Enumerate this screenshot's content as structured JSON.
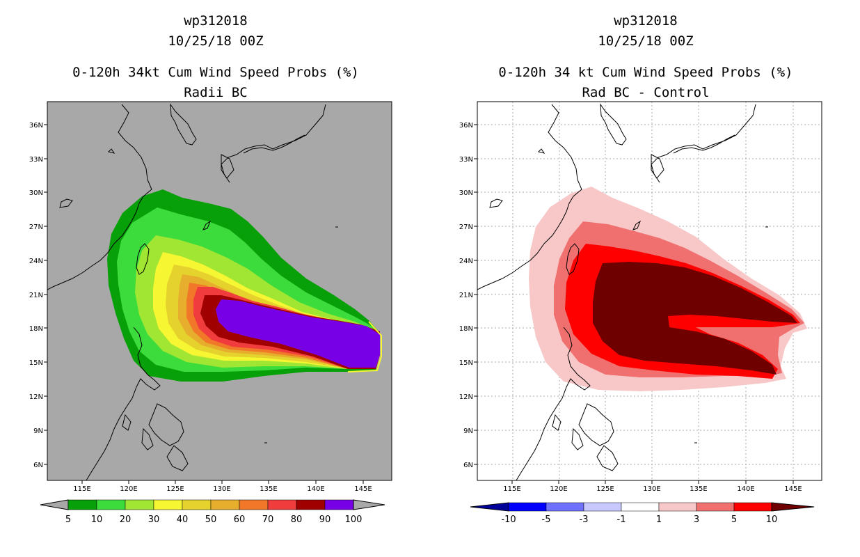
{
  "panels": [
    {
      "id": "left",
      "storm": "wp312018",
      "datetime": "10/25/18 00Z",
      "title": "0-120h 34kt Cum Wind Speed Probs (%)",
      "subtitle": "Radii BC",
      "background": "#a8a8a8",
      "colorbar": {
        "labels": [
          "5",
          "10",
          "20",
          "30",
          "40",
          "50",
          "60",
          "70",
          "80",
          "90",
          "100"
        ],
        "colors": [
          "#08a008",
          "#3cdc3c",
          "#a0e632",
          "#f6f632",
          "#e6d22d",
          "#e6ae2c",
          "#f07828",
          "#f03c3c",
          "#a00000",
          "#7800e6"
        ],
        "end_color": "#a8a8a8"
      }
    },
    {
      "id": "right",
      "storm": "wp312018",
      "datetime": "10/25/18 00Z",
      "title": "0-120h 34 kt Cum Wind Speed Probs (%)",
      "subtitle": "Rad BC - Control",
      "background": "#ffffff",
      "colorbar": {
        "labels": [
          "-10",
          "-5",
          "-3",
          "-1",
          "1",
          "3",
          "5",
          "10"
        ],
        "colors": [
          "#0000ff",
          "#7070ff",
          "#c8c8ff",
          "#ffffff",
          "#f8c8c8",
          "#f07070",
          "#ff0000"
        ],
        "end_left": "#00009a",
        "end_right": "#6e0000"
      }
    }
  ],
  "map": {
    "lon_labels": [
      "115E",
      "120E",
      "125E",
      "130E",
      "135E",
      "140E",
      "145E"
    ],
    "lat_labels": [
      "36N",
      "33N",
      "30N",
      "27N",
      "24N",
      "21N",
      "18N",
      "15N",
      "12N",
      "9N",
      "6N"
    ]
  },
  "colors": {
    "coast": "#000000",
    "frame": "#000000"
  }
}
